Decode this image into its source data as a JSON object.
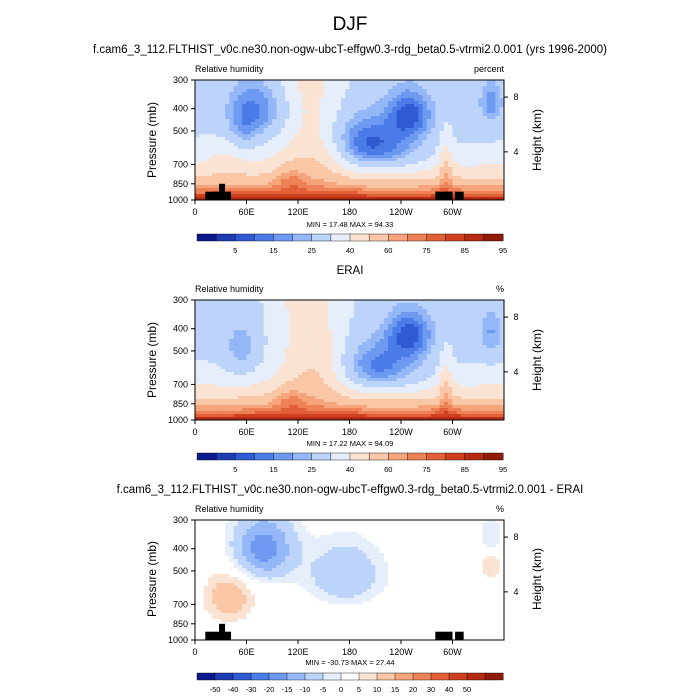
{
  "figure": {
    "title": "DJF",
    "colors": {
      "rh_palette": [
        "#0a1a8c",
        "#1e3cb4",
        "#2f5ad2",
        "#4a7be6",
        "#6d9af0",
        "#94b8f7",
        "#bcd3fa",
        "#e6eefb",
        "#fbe3d3",
        "#f9c6a6",
        "#f5a47c",
        "#ee8257",
        "#e25f38",
        "#cf4020",
        "#b52a10",
        "#8f1b06"
      ],
      "diff_palette": [
        "#0a1a8c",
        "#1e3cb4",
        "#2f5ad2",
        "#4a7be6",
        "#6d9af0",
        "#94b8f7",
        "#bcd3fa",
        "#e6eefb",
        "#ffffff",
        "#fbe3d3",
        "#f9c6a6",
        "#f5a47c",
        "#ee8257",
        "#e25f38",
        "#cf4020",
        "#b52a10",
        "#8f1b06"
      ],
      "mask": "#000000"
    }
  },
  "chart_data": [
    {
      "type": "heatmap",
      "title": "f.cam6_3_112.FLTHIST_v0c.ne30.non-ogw-ubcT-effgw0.3-rdg_beta0.5-vtrmi2.0.001 (yrs 1996-2000)",
      "left_label": "Relative humidity",
      "right_label": "percent",
      "ylabel": "Pressure (mb)",
      "y2label": "Height (km)",
      "x_ticks": [
        "0",
        "60E",
        "120E",
        "180",
        "120W",
        "60W"
      ],
      "y_ticks": [
        "300",
        "400",
        "500",
        "700",
        "850",
        "1000"
      ],
      "y2_ticks": [
        "8",
        "4"
      ],
      "xlim": [
        0,
        360
      ],
      "ylim": [
        1000,
        300
      ],
      "stats": "MIN = 17.48  MAX = 94.33",
      "colorbar_labels": [
        "5",
        "15",
        "25",
        "40",
        "60",
        "75",
        "85",
        "95"
      ],
      "palette": "rh",
      "value_range": [
        17.48,
        94.33
      ]
    },
    {
      "type": "heatmap",
      "title": "ERAI",
      "left_label": "Relative humidity",
      "right_label": "%",
      "ylabel": "Pressure (mb)",
      "y2label": "Height (km)",
      "x_ticks": [
        "0",
        "60E",
        "120E",
        "180",
        "120W",
        "60W"
      ],
      "y_ticks": [
        "300",
        "400",
        "500",
        "700",
        "850",
        "1000"
      ],
      "y2_ticks": [
        "8",
        "4"
      ],
      "xlim": [
        0,
        360
      ],
      "ylim": [
        1000,
        300
      ],
      "stats": "MIN = 17.22  MAX = 94.09",
      "colorbar_labels": [
        "5",
        "15",
        "25",
        "40",
        "60",
        "75",
        "85",
        "95"
      ],
      "palette": "rh",
      "value_range": [
        17.22,
        94.09
      ]
    },
    {
      "type": "heatmap",
      "title": "f.cam6_3_112.FLTHIST_v0c.ne30.non-ogw-ubcT-effgw0.3-rdg_beta0.5-vtrmi2.0.001 - ERAI",
      "left_label": "Relative humidity",
      "right_label": "%",
      "ylabel": "Pressure (mb)",
      "y2label": "Height (km)",
      "x_ticks": [
        "0",
        "60E",
        "120E",
        "180",
        "120W",
        "60W"
      ],
      "y_ticks": [
        "300",
        "400",
        "500",
        "700",
        "850",
        "1000"
      ],
      "y2_ticks": [
        "8",
        "4"
      ],
      "xlim": [
        0,
        360
      ],
      "ylim": [
        1000,
        300
      ],
      "stats": "MIN = -30.73  MAX = 27.44",
      "colorbar_labels": [
        "-50",
        "-40",
        "-30",
        "-20",
        "-15",
        "-10",
        "-5",
        "0",
        "5",
        "10",
        "15",
        "20",
        "30",
        "40",
        "50"
      ],
      "palette": "diff",
      "value_range": [
        -30.73,
        27.44
      ]
    }
  ]
}
